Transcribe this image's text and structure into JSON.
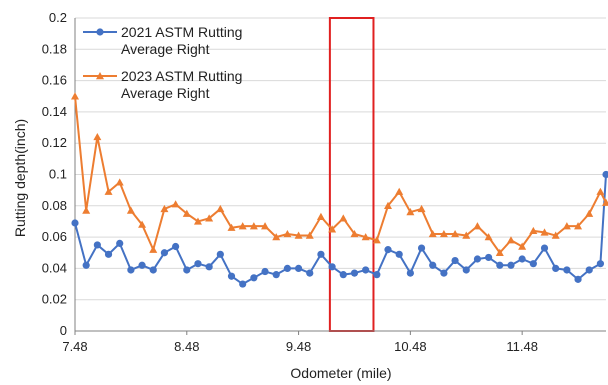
{
  "chart_data": {
    "type": "line",
    "xlabel": "Odometer (mile)",
    "ylabel": "Rutting depth(inch)",
    "xlim": [
      7.48,
      12.23
    ],
    "ylim": [
      0,
      0.2
    ],
    "x_ticks": [
      "7.48",
      "8.48",
      "9.48",
      "10.48",
      "11.48"
    ],
    "x_tick_values": [
      7.48,
      8.48,
      9.48,
      10.48,
      11.48
    ],
    "y_ticks": [
      "0",
      "0.02",
      "0.04",
      "0.06",
      "0.08",
      "0.1",
      "0.12",
      "0.14",
      "0.16",
      "0.18",
      "0.2"
    ],
    "y_tick_values": [
      0,
      0.02,
      0.04,
      0.06,
      0.08,
      0.1,
      0.12,
      0.14,
      0.16,
      0.18,
      0.2
    ],
    "grid": "horizontal",
    "legend_position": "top-left",
    "highlight_region": {
      "x_start": 9.76,
      "x_end": 10.15,
      "color": "#e02020"
    },
    "series": [
      {
        "name": "2021 ASTM Rutting Average Right",
        "color": "#4472c4",
        "marker": "circle",
        "x": [
          7.48,
          7.58,
          7.68,
          7.78,
          7.88,
          7.98,
          8.08,
          8.18,
          8.28,
          8.38,
          8.48,
          8.58,
          8.68,
          8.78,
          8.88,
          8.98,
          9.08,
          9.18,
          9.28,
          9.38,
          9.48,
          9.58,
          9.68,
          9.78,
          9.88,
          9.98,
          10.08,
          10.18,
          10.28,
          10.38,
          10.48,
          10.58,
          10.68,
          10.78,
          10.88,
          10.98,
          11.08,
          11.18,
          11.28,
          11.38,
          11.48,
          11.58,
          11.68,
          11.78,
          11.88,
          11.98,
          12.08,
          12.18,
          12.23
        ],
        "y": [
          0.069,
          0.042,
          0.055,
          0.049,
          0.056,
          0.039,
          0.042,
          0.039,
          0.05,
          0.054,
          0.039,
          0.043,
          0.041,
          0.049,
          0.035,
          0.03,
          0.034,
          0.038,
          0.036,
          0.04,
          0.04,
          0.037,
          0.049,
          0.041,
          0.036,
          0.037,
          0.039,
          0.036,
          0.052,
          0.049,
          0.037,
          0.053,
          0.042,
          0.037,
          0.045,
          0.039,
          0.046,
          0.047,
          0.042,
          0.042,
          0.046,
          0.043,
          0.053,
          0.04,
          0.039,
          0.033,
          0.039,
          0.043,
          0.1
        ]
      },
      {
        "name": "2023 ASTM Rutting Average Right",
        "color": "#ed7d31",
        "marker": "triangle",
        "x": [
          7.48,
          7.58,
          7.68,
          7.78,
          7.88,
          7.98,
          8.08,
          8.18,
          8.28,
          8.38,
          8.48,
          8.58,
          8.68,
          8.78,
          8.88,
          8.98,
          9.08,
          9.18,
          9.28,
          9.38,
          9.48,
          9.58,
          9.68,
          9.78,
          9.88,
          9.98,
          10.08,
          10.18,
          10.28,
          10.38,
          10.48,
          10.58,
          10.68,
          10.78,
          10.88,
          10.98,
          11.08,
          11.18,
          11.28,
          11.38,
          11.48,
          11.58,
          11.68,
          11.78,
          11.88,
          11.98,
          12.08,
          12.18,
          12.23
        ],
        "y": [
          0.15,
          0.077,
          0.124,
          0.089,
          0.095,
          0.077,
          0.068,
          0.052,
          0.078,
          0.081,
          0.075,
          0.07,
          0.072,
          0.078,
          0.066,
          0.067,
          0.067,
          0.067,
          0.06,
          0.062,
          0.061,
          0.061,
          0.073,
          0.065,
          0.072,
          0.062,
          0.06,
          0.058,
          0.08,
          0.089,
          0.076,
          0.078,
          0.062,
          0.062,
          0.062,
          0.061,
          0.067,
          0.06,
          0.05,
          0.058,
          0.054,
          0.064,
          0.063,
          0.061,
          0.067,
          0.067,
          0.075,
          0.089,
          0.082
        ]
      }
    ]
  }
}
